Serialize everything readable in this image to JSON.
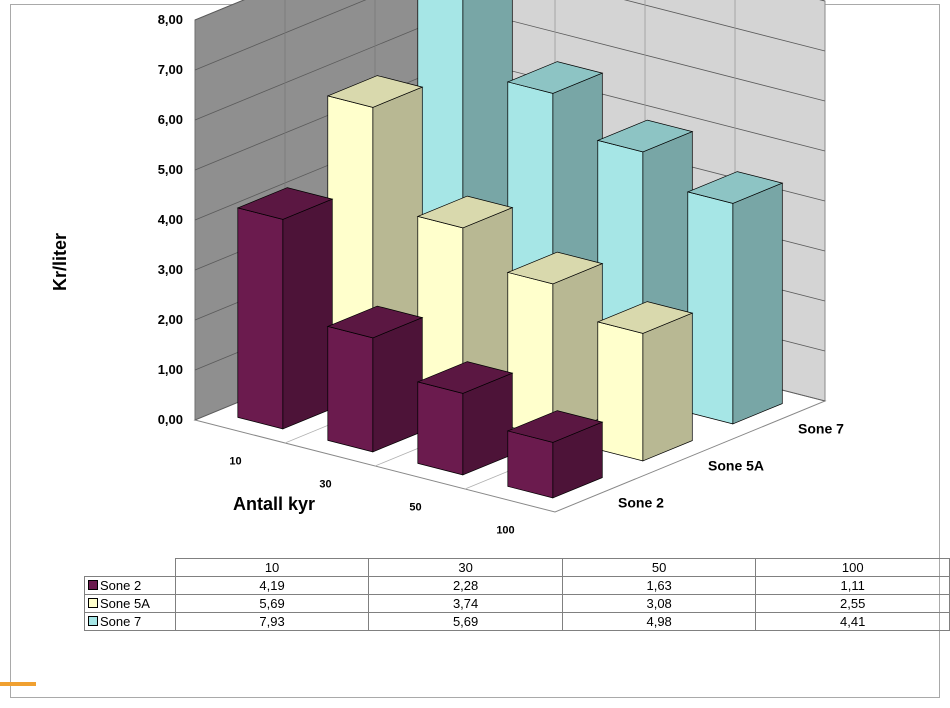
{
  "chart_data": {
    "type": "bar",
    "variant": "3d-column",
    "categories": [
      "10",
      "30",
      "50",
      "100"
    ],
    "series": [
      {
        "name": "Sone 2",
        "values": [
          4.19,
          2.28,
          1.63,
          1.11
        ],
        "color": "#6b1b4e"
      },
      {
        "name": "Sone 5A",
        "values": [
          5.69,
          3.74,
          3.08,
          2.55
        ],
        "color": "#ffffcc"
      },
      {
        "name": "Sone 7",
        "values": [
          7.93,
          5.69,
          4.98,
          4.41
        ],
        "color": "#a6e6e6"
      }
    ],
    "yticks": [
      "0,00",
      "1,00",
      "2,00",
      "3,00",
      "4,00",
      "5,00",
      "6,00",
      "7,00",
      "8,00"
    ],
    "ylim": [
      0,
      8
    ],
    "xlabel": "Antall kyr",
    "ylabel": "Kr/liter",
    "grid": true,
    "legend": "data-table-below",
    "table": {
      "header": [
        "10",
        "30",
        "50",
        "100"
      ],
      "rows": [
        {
          "name": "Sone 2",
          "values": [
            "4,19",
            "2,28",
            "1,63",
            "1,11"
          ]
        },
        {
          "name": "Sone 5A",
          "values": [
            "5,69",
            "3,74",
            "3,08",
            "2,55"
          ]
        },
        {
          "name": "Sone 7",
          "values": [
            "7,93",
            "5,69",
            "4,98",
            "4,41"
          ]
        }
      ]
    }
  }
}
